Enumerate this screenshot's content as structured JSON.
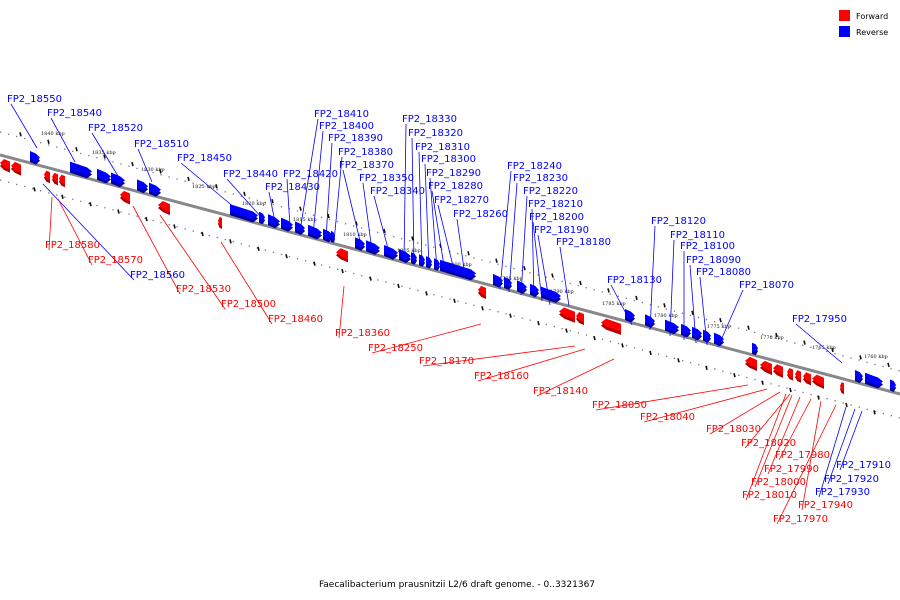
{
  "colors": {
    "forward": "#ff0000",
    "reverse": "#0000ff",
    "axis": "#888888"
  },
  "legend": {
    "forward_label": "Forward",
    "reverse_label": "Reverse"
  },
  "caption": "Faecalibacterium prausnitzii L2/6 draft genome. - 0..3321367",
  "kbp_ticks": [
    "1840 kbp",
    "1835 kbp",
    "1830 kbp",
    "1825 kbp",
    "1820 kbp",
    "1815 kbp",
    "1810 kbp",
    "1805 kbp",
    "1800 kbp",
    "1795 kbp",
    "1790 kbp",
    "1785 kbp",
    "1780 kbp",
    "1775 kbp",
    "1770 kbp",
    "1765 kbp",
    "1760 kbp"
  ],
  "reverse_labels": [
    "FP2_18550",
    "FP2_18540",
    "FP2_18520",
    "FP2_18510",
    "FP2_18450",
    "FP2_18440",
    "FP2_18430",
    "FP2_18420",
    "FP2_18410",
    "FP2_18400",
    "FP2_18390",
    "FP2_18380",
    "FP2_18370",
    "FP2_18350",
    "FP2_18340",
    "FP2_18330",
    "FP2_18320",
    "FP2_18310",
    "FP2_18300",
    "FP2_18290",
    "FP2_18280",
    "FP2_18270",
    "FP2_18260",
    "FP2_18240",
    "FP2_18230",
    "FP2_18220",
    "FP2_18210",
    "FP2_18200",
    "FP2_18190",
    "FP2_18180",
    "FP2_18130",
    "FP2_18120",
    "FP2_18110",
    "FP2_18100",
    "FP2_18090",
    "FP2_18080",
    "FP2_18070",
    "FP2_17950",
    "FP2_18560",
    "FP2_17910",
    "FP2_17920",
    "FP2_17930"
  ],
  "forward_labels": [
    "FP2_18580",
    "FP2_18570",
    "FP2_18530",
    "FP2_18500",
    "FP2_18460",
    "FP2_18360",
    "FP2_18250",
    "FP2_18170",
    "FP2_18160",
    "FP2_18140",
    "FP2_18050",
    "FP2_18040",
    "FP2_18030",
    "FP2_18020",
    "FP2_17980",
    "FP2_17990",
    "FP2_18000",
    "FP2_18010",
    "FP2_17940",
    "FP2_17970"
  ]
}
